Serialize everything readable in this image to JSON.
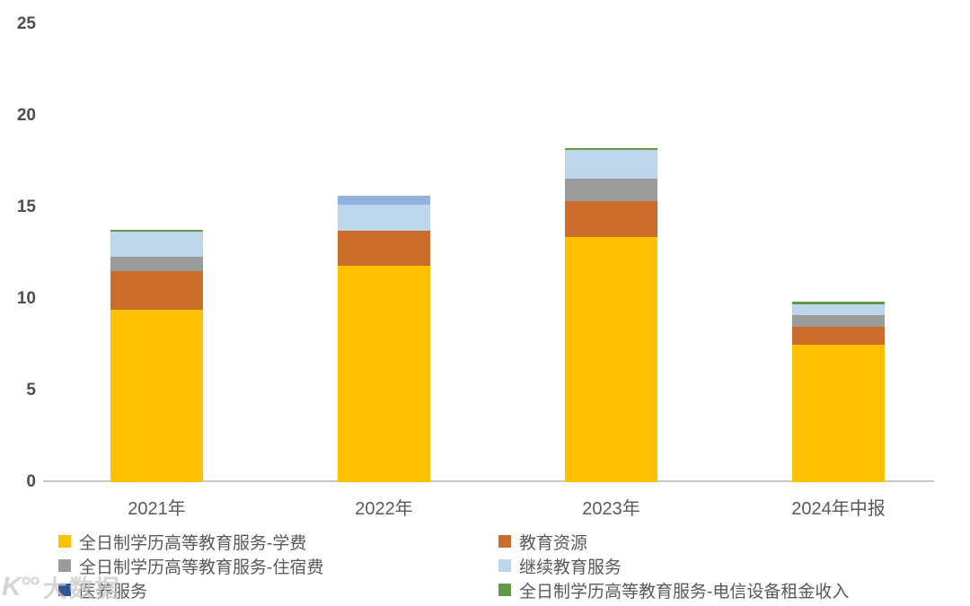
{
  "chart_data": {
    "type": "bar",
    "variant": "stacked",
    "title": "",
    "xlabel": "",
    "ylabel": "",
    "categories": [
      "2021年",
      "2022年",
      "2023年",
      "2024年中报"
    ],
    "series": [
      {
        "name": "全日制学历高等教育服务-学费",
        "color": "#FFC000",
        "values": [
          9.4,
          11.8,
          13.4,
          7.5
        ]
      },
      {
        "name": "教育资源",
        "color": "#CC6C2B",
        "values": [
          2.1,
          1.95,
          1.95,
          1.0
        ]
      },
      {
        "name": "全日制学历高等教育服务-住宿费",
        "color": "#9B9B9B",
        "values": [
          0.8,
          0,
          1.2,
          0.6
        ]
      },
      {
        "name": "继续教育服务",
        "color": "#BDD6EC",
        "values": [
          1.4,
          1.4,
          1.6,
          0.6
        ]
      },
      {
        "name": "医养服务",
        "color": "#93B2DB",
        "legend_color": "#2F5597",
        "values": [
          0,
          0.5,
          0,
          0
        ]
      },
      {
        "name": "全日制学历高等教育服务-电信设备租金收入",
        "color": "#63984B",
        "values": [
          0.1,
          0,
          0.1,
          0.15
        ]
      }
    ],
    "ylim": [
      0,
      25
    ],
    "yticks": [
      0,
      5,
      10,
      15,
      20,
      25
    ],
    "grid": false,
    "legend_position": "bottom"
  },
  "watermark": {
    "logo": "K°°",
    "text": "大数据"
  }
}
